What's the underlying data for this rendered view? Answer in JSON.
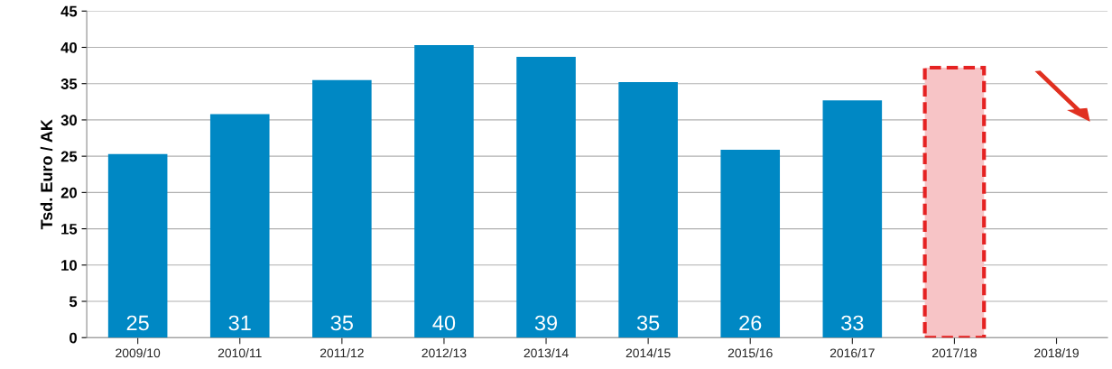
{
  "chart_data": {
    "type": "bar",
    "ylabel": "Tsd. Euro / AK",
    "categories": [
      "2009/10",
      "2010/11",
      "2011/12",
      "2012/13",
      "2013/14",
      "2014/15",
      "2015/16",
      "2016/17",
      "2017/18",
      "2018/19"
    ],
    "series": [
      {
        "color": "#0088c4",
        "values": [
          25.3,
          30.8,
          35.5,
          40.3,
          38.7,
          35.2,
          25.9,
          32.7,
          null,
          null
        ],
        "value_labels": [
          "25",
          "31",
          "35",
          "40",
          "39",
          "35",
          "26",
          "33",
          null,
          null
        ]
      },
      {
        "color": "#f7c4c6",
        "line_style": "dashed",
        "values": [
          null,
          null,
          null,
          null,
          null,
          null,
          null,
          null,
          37.2,
          null
        ]
      }
    ],
    "ylim": [
      0,
      45
    ],
    "yticks": [
      0,
      5,
      10,
      15,
      20,
      25,
      30,
      35,
      40,
      45
    ],
    "grid": "y",
    "legend": false
  }
}
